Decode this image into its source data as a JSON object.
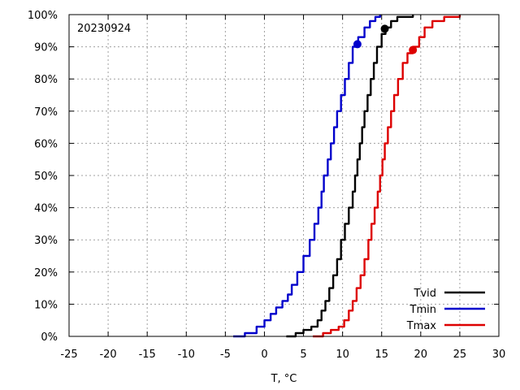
{
  "chart_data": {
    "type": "line",
    "title": "",
    "annotation": "20230924",
    "xlabel": "T, °C",
    "ylabel": "",
    "xlim": [
      -25,
      30
    ],
    "ylim": [
      0,
      100
    ],
    "xticks": [
      "-25",
      "-20",
      "-15",
      "-10",
      "-5",
      "0",
      "5",
      "10",
      "15",
      "20",
      "25",
      "30"
    ],
    "yticks": [
      "0%",
      "10%",
      "20%",
      "30%",
      "40%",
      "50%",
      "60%",
      "70%",
      "80%",
      "90%",
      "100%"
    ],
    "grid": true,
    "legend_position": "bottom-right",
    "series": [
      {
        "name": "Tvid",
        "color": "#000000",
        "points": [
          [
            2.8,
            0
          ],
          [
            4.0,
            1
          ],
          [
            5.0,
            2
          ],
          [
            6.0,
            3
          ],
          [
            6.8,
            5
          ],
          [
            7.3,
            8
          ],
          [
            7.8,
            11
          ],
          [
            8.3,
            15
          ],
          [
            8.8,
            19
          ],
          [
            9.3,
            24
          ],
          [
            9.8,
            30
          ],
          [
            10.3,
            35
          ],
          [
            10.8,
            40
          ],
          [
            11.3,
            45
          ],
          [
            11.6,
            50
          ],
          [
            11.9,
            55
          ],
          [
            12.2,
            60
          ],
          [
            12.5,
            65
          ],
          [
            12.8,
            70
          ],
          [
            13.2,
            75
          ],
          [
            13.6,
            80
          ],
          [
            14.0,
            85
          ],
          [
            14.4,
            90
          ],
          [
            15.0,
            94
          ],
          [
            15.5,
            96
          ],
          [
            16.2,
            98
          ],
          [
            17.0,
            99.3
          ],
          [
            19.0,
            100
          ]
        ],
        "marker": [
          15.4,
          95.6
        ]
      },
      {
        "name": "Tmin",
        "color": "#0000cc",
        "points": [
          [
            -4.0,
            0
          ],
          [
            -2.5,
            1
          ],
          [
            -1.0,
            3
          ],
          [
            0.0,
            5
          ],
          [
            0.8,
            7
          ],
          [
            1.5,
            9
          ],
          [
            2.3,
            11
          ],
          [
            3.0,
            13
          ],
          [
            3.5,
            16
          ],
          [
            4.2,
            20
          ],
          [
            5.0,
            25
          ],
          [
            5.8,
            30
          ],
          [
            6.4,
            35
          ],
          [
            6.9,
            40
          ],
          [
            7.3,
            45
          ],
          [
            7.6,
            50
          ],
          [
            8.1,
            55
          ],
          [
            8.5,
            60
          ],
          [
            8.9,
            65
          ],
          [
            9.3,
            70
          ],
          [
            9.8,
            75
          ],
          [
            10.3,
            80
          ],
          [
            10.8,
            85
          ],
          [
            11.3,
            90
          ],
          [
            12.0,
            93
          ],
          [
            12.8,
            96
          ],
          [
            13.5,
            98
          ],
          [
            14.2,
            99.3
          ],
          [
            14.8,
            100
          ]
        ],
        "marker": [
          11.9,
          90.8
        ]
      },
      {
        "name": "Tmax",
        "color": "#dd0000",
        "points": [
          [
            6.2,
            0
          ],
          [
            7.5,
            1
          ],
          [
            8.5,
            2
          ],
          [
            9.5,
            3
          ],
          [
            10.2,
            5
          ],
          [
            10.8,
            8
          ],
          [
            11.3,
            11
          ],
          [
            11.8,
            15
          ],
          [
            12.3,
            19
          ],
          [
            12.8,
            24
          ],
          [
            13.3,
            30
          ],
          [
            13.7,
            35
          ],
          [
            14.1,
            40
          ],
          [
            14.5,
            45
          ],
          [
            14.8,
            50
          ],
          [
            15.1,
            55
          ],
          [
            15.4,
            60
          ],
          [
            15.8,
            65
          ],
          [
            16.2,
            70
          ],
          [
            16.6,
            75
          ],
          [
            17.1,
            80
          ],
          [
            17.7,
            85
          ],
          [
            18.3,
            88
          ],
          [
            19.0,
            90
          ],
          [
            19.8,
            93
          ],
          [
            20.5,
            96
          ],
          [
            21.5,
            98
          ],
          [
            23.0,
            99.3
          ],
          [
            25.0,
            100
          ]
        ],
        "marker": [
          19.0,
          89.0
        ]
      }
    ]
  }
}
